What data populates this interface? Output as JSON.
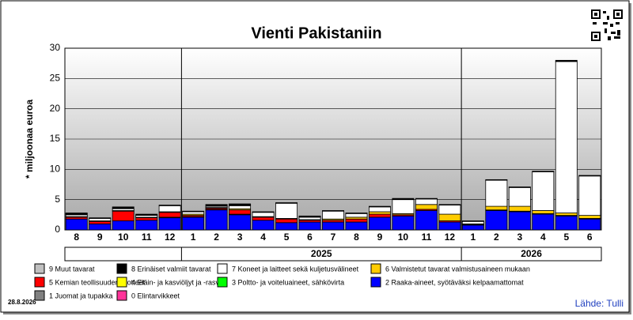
{
  "chart_data": {
    "type": "stacked-bar",
    "title": "Vienti Pakistaniin",
    "y_label": "* miljoonaa euroa",
    "date": "28.8.2026",
    "source": "Lähde: Tulli",
    "categories": [
      "8",
      "9",
      "10",
      "11",
      "12",
      "1",
      "2",
      "3",
      "4",
      "5",
      "6",
      "7",
      "8",
      "9",
      "10",
      "11",
      "12",
      "1",
      "2",
      "3",
      "4",
      "5",
      "6"
    ],
    "groups": [
      {
        "label": null,
        "count": 5
      },
      {
        "label": "2025",
        "count": 12
      },
      {
        "label": "2026",
        "count": 6
      }
    ],
    "ylim": [
      0,
      30
    ],
    "yticks": [
      0,
      5,
      10,
      15,
      20,
      25,
      30
    ],
    "grid": true,
    "series": [
      {
        "name": "9 Muut tavarat",
        "color": "#c0c0c0",
        "values": [
          0.1,
          0,
          0,
          0.1,
          0,
          0,
          0.1,
          0.1,
          0,
          0,
          0.1,
          0,
          0,
          0,
          0,
          0,
          0,
          0,
          0,
          0,
          0,
          0,
          0
        ]
      },
      {
        "name": "8 Erinäiset valmiit tavarat",
        "color": "#000000",
        "values": [
          0.2,
          0.1,
          0.3,
          0.1,
          0.1,
          0.1,
          0.2,
          0.2,
          0.1,
          0.1,
          0.1,
          0.1,
          0.1,
          0.1,
          0.2,
          0.1,
          0.1,
          0.1,
          0.1,
          0.1,
          0.1,
          0.2,
          0.1
        ]
      },
      {
        "name": "7 Koneet ja laitteet sekä kuljetusvälineet",
        "color": "#ffffff",
        "values": [
          0.3,
          0.4,
          0.3,
          0.3,
          1.0,
          0.4,
          0.2,
          0.5,
          0.7,
          2.5,
          0.4,
          1.3,
          0.6,
          0.8,
          2.3,
          0.9,
          1.5,
          0.4,
          4.3,
          3.1,
          6.4,
          25.0,
          6.5
        ]
      },
      {
        "name": "6 Valmistetut tavarat valmistusaineen mukaan",
        "color": "#ffcc00",
        "values": [
          0.1,
          0.1,
          0.1,
          0.1,
          0.1,
          0.2,
          0.1,
          0.2,
          0.1,
          0.1,
          0.1,
          0.2,
          0.3,
          0.4,
          0.2,
          0.8,
          1.1,
          0.1,
          0.6,
          0.8,
          0.5,
          0.4,
          0.5
        ]
      },
      {
        "name": "5 Kemian teollisuuden tuotteet",
        "color": "#ff0000",
        "values": [
          0.3,
          0.4,
          1.6,
          0.4,
          0.8,
          0.2,
          0.2,
          0.7,
          0.5,
          0.6,
          0.3,
          0.3,
          0.5,
          0.5,
          0.2,
          0.2,
          0.2,
          0.1,
          0.1,
          0.1,
          0.1,
          0.1,
          0.1
        ]
      },
      {
        "name": "4 Eläin- ja kasviöljyt ja -rasvat",
        "color": "#ffff00",
        "values": [
          0,
          0,
          0,
          0,
          0.1,
          0.1,
          0.1,
          0.1,
          0,
          0,
          0,
          0,
          0,
          0,
          0,
          0,
          0,
          0,
          0,
          0,
          0,
          0,
          0
        ]
      },
      {
        "name": "3 Poltto- ja voiteluaineet, sähkövirta",
        "color": "#00ff00",
        "values": [
          0,
          0,
          0,
          0,
          0,
          0,
          0,
          0,
          0,
          0,
          0,
          0,
          0,
          0,
          0,
          0,
          0,
          0,
          0,
          0,
          0,
          0,
          0
        ]
      },
      {
        "name": "2 Raaka-aineet, syötäväksi kelpaamattomat",
        "color": "#0000ff",
        "values": [
          1.8,
          1.0,
          1.5,
          1.6,
          2.0,
          2.1,
          3.3,
          2.5,
          1.6,
          1.2,
          1.3,
          1.3,
          1.3,
          2.1,
          2.3,
          3.2,
          1.3,
          0.8,
          3.2,
          3.0,
          2.6,
          2.3,
          1.8
        ]
      },
      {
        "name": "1 Juomat ja tupakka",
        "color": "#808080",
        "values": [
          0,
          0,
          0,
          0,
          0,
          0,
          0,
          0,
          0,
          0,
          0,
          0,
          0,
          0,
          0,
          0,
          0,
          0,
          0,
          0,
          0,
          0,
          0
        ]
      },
      {
        "name": "0 Elintarvikkeet",
        "color": "#ff3399",
        "values": [
          0,
          0,
          0,
          0,
          0,
          0,
          0,
          0,
          0,
          0,
          0,
          0,
          0,
          0,
          0,
          0,
          0,
          0,
          0,
          0,
          0,
          0,
          0
        ]
      }
    ]
  }
}
